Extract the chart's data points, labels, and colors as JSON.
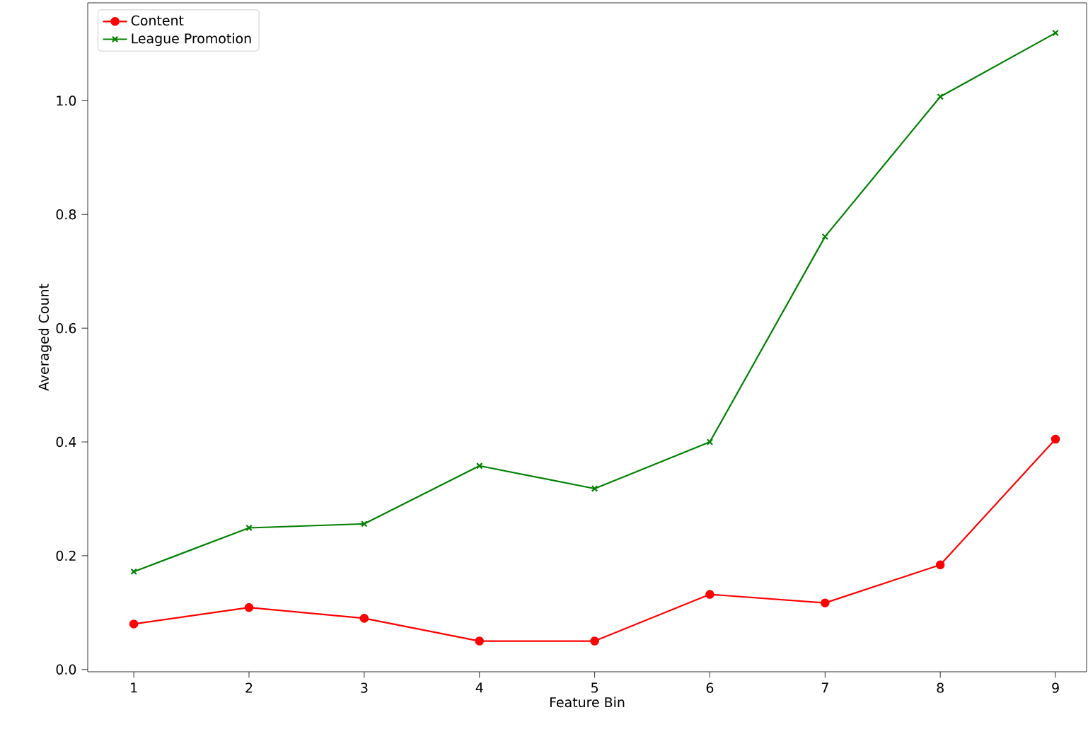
{
  "chart_data": {
    "type": "line",
    "xlabel": "Feature Bin",
    "ylabel": "Averaged Count",
    "x": [
      1,
      2,
      3,
      4,
      5,
      6,
      7,
      8,
      9
    ],
    "series": [
      {
        "name": "Content",
        "color": "#ff0000",
        "marker": "circle",
        "values": [
          0.08,
          0.109,
          0.09,
          0.05,
          0.05,
          0.132,
          0.117,
          0.184,
          0.405
        ]
      },
      {
        "name": "League Promotion",
        "color": "#008000",
        "marker": "cross",
        "values": [
          0.172,
          0.249,
          0.256,
          0.358,
          0.318,
          0.4,
          0.761,
          1.007,
          1.119
        ]
      }
    ],
    "xlim": [
      0.6,
      9.27
    ],
    "ylim": [
      -0.004,
      1.172
    ],
    "xticks": [
      1,
      2,
      3,
      4,
      5,
      6,
      7,
      8,
      9
    ],
    "yticks": [
      {
        "value": 0,
        "label": "0.0"
      },
      {
        "value": 0.2,
        "label": "0.2"
      },
      {
        "value": 0.4,
        "label": "0.4"
      },
      {
        "value": 0.6,
        "label": "0.6"
      },
      {
        "value": 0.8,
        "label": "0.8"
      },
      {
        "value": 1.0,
        "label": "1.0"
      }
    ],
    "legend": "top left",
    "grid": false,
    "line_style": "solid"
  }
}
